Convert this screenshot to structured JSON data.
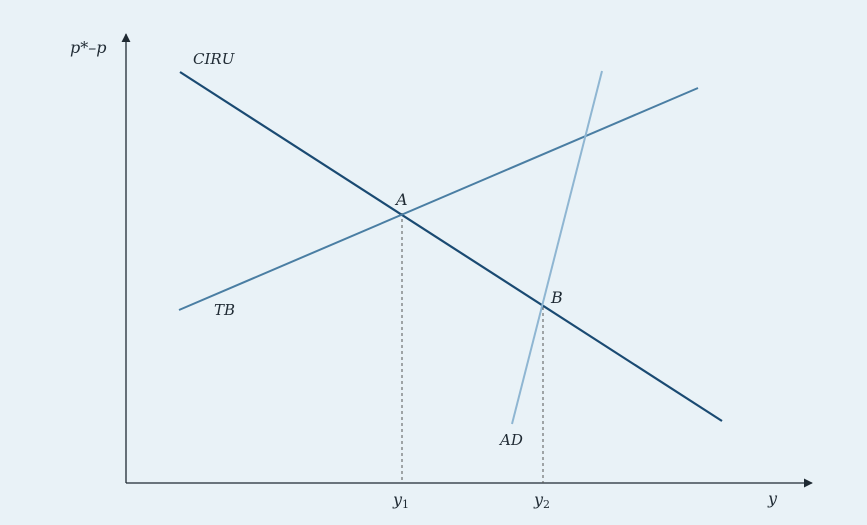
{
  "colors": {
    "background": "#e9f2f7",
    "axis": "#1f2a33",
    "ciru": "#1a4a72",
    "tb": "#4a7ea3",
    "ad": "#8fb6d2",
    "guide": "#555555"
  },
  "axes": {
    "y_label": "p*–p",
    "x_label": "y"
  },
  "curves": {
    "ciru": "CIRU",
    "tb": "TB",
    "ad": "AD"
  },
  "points": {
    "a": "A",
    "b": "B"
  },
  "x_ticks": [
    {
      "base": "y",
      "sub": "1"
    },
    {
      "base": "y",
      "sub": "2"
    }
  ]
}
